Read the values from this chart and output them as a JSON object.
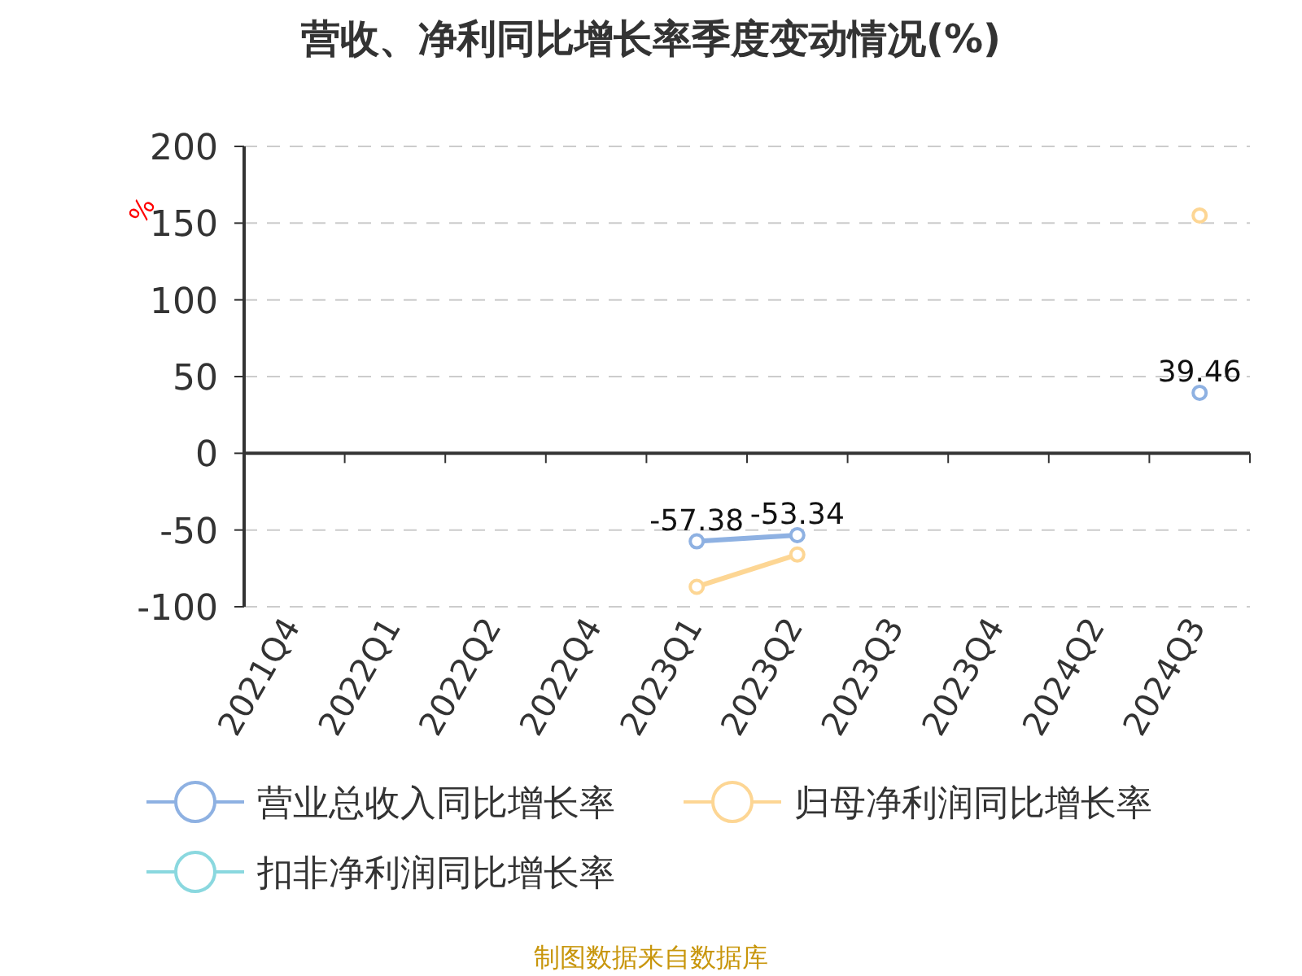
{
  "chart_data": {
    "type": "line",
    "title": "营收、净利同比增长率季度变动情况(%)",
    "ylabel": "%",
    "categories": [
      "2021Q4",
      "2022Q1",
      "2022Q2",
      "2022Q4",
      "2023Q1",
      "2023Q2",
      "2023Q3",
      "2023Q4",
      "2024Q2",
      "2024Q3"
    ],
    "series": [
      {
        "name": "营业总收入同比增长率",
        "color": "#8eb1e2",
        "values": [
          null,
          null,
          null,
          null,
          -57.38,
          -53.34,
          null,
          null,
          null,
          39.46
        ],
        "value_labels": [
          null,
          null,
          null,
          null,
          "-57.38",
          "-53.34",
          null,
          null,
          null,
          "39.46"
        ]
      },
      {
        "name": "归母净利润同比增长率",
        "color": "#fdd694",
        "values": [
          null,
          null,
          null,
          null,
          -87,
          -66,
          null,
          null,
          null,
          155
        ]
      },
      {
        "name": "扣非净利润同比增长率",
        "color": "#8ad8df",
        "values": [
          null,
          null,
          null,
          null,
          null,
          null,
          null,
          null,
          null,
          null
        ]
      }
    ],
    "ylim": [
      -100,
      200
    ],
    "yticks": [
      -100,
      -50,
      0,
      50,
      100,
      150,
      200
    ],
    "grid": "y",
    "marker": "circle",
    "line_style": "solid",
    "legend": "bottom",
    "annotations": [
      "制图数据来自数据库"
    ]
  }
}
